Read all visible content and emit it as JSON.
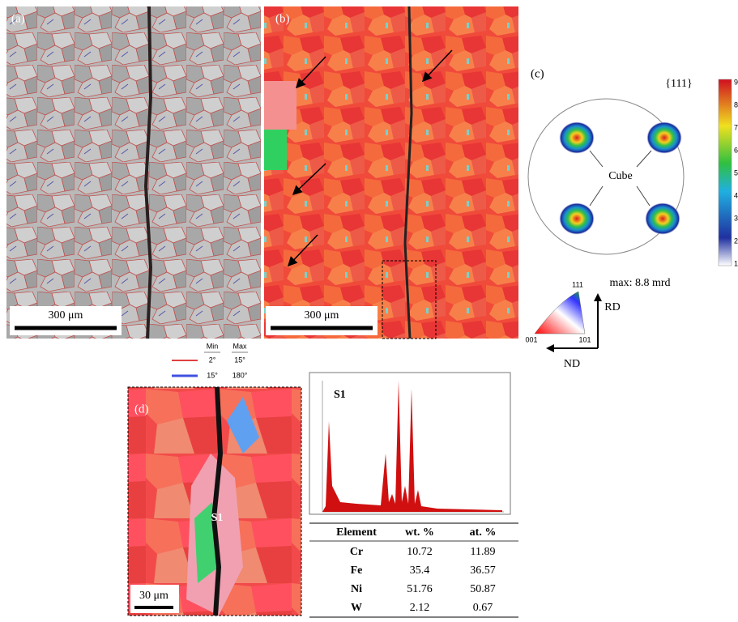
{
  "panel_a": {
    "label": "(a)",
    "scale_bar": "300 μm"
  },
  "panel_b": {
    "label": "(b)",
    "scale_bar": "300 μm"
  },
  "panel_c": {
    "label": "(c)",
    "pole": "{111}",
    "texture": "Cube",
    "max": "max: 8.8 mrd",
    "colorbar_ticks": [
      1,
      2,
      3,
      4,
      5,
      6,
      7,
      8,
      9
    ]
  },
  "ipf_key": {
    "corners": [
      "111",
      "001",
      "101"
    ],
    "axes": [
      "RD",
      "ND"
    ]
  },
  "boundary_legend": {
    "header": [
      "Min",
      "Max"
    ],
    "rows": [
      [
        "2°",
        "15°"
      ],
      [
        "15°",
        "180°"
      ]
    ]
  },
  "panel_d": {
    "label": "(d)",
    "point": "S1",
    "scale_bar": "30 μm"
  },
  "eds": {
    "spectrum_label": "S1",
    "table": {
      "header": [
        "Element",
        "wt. %",
        "at. %"
      ],
      "rows": [
        [
          "Cr",
          10.72,
          11.89
        ],
        [
          "Fe",
          35.4,
          36.57
        ],
        [
          "Ni",
          51.76,
          50.87
        ],
        [
          "W",
          2.12,
          0.67
        ]
      ]
    }
  }
}
